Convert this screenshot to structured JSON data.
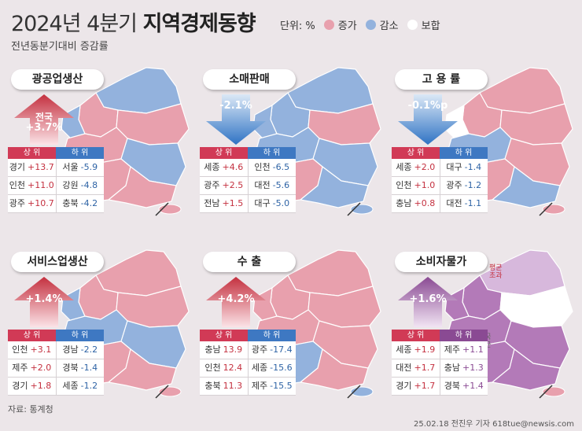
{
  "header": {
    "title_light": "2024년 4분기",
    "title_bold": "지역경제동향",
    "subtitle": "전년동분기대비 증감률"
  },
  "legend": {
    "unit": "단위: %",
    "items": [
      {
        "label": "증가",
        "color": "#e8a0ad"
      },
      {
        "label": "감소",
        "color": "#93b2dd"
      },
      {
        "label": "보합",
        "color": "#ffffff"
      }
    ]
  },
  "colors": {
    "increase": "#e8a0ad",
    "decrease": "#93b2dd",
    "neutral": "#ffffff",
    "purple": "#b37ab8",
    "purple_light": "#d7b8dc"
  },
  "source": "자료: 통계청",
  "credit": "25.02.18 전진우 기자 618tue@newsis.com",
  "chart_data": [
    {
      "type": "table",
      "title": "광공업생산",
      "national_label": "전국",
      "national": "+3.7%",
      "direction": "up",
      "top_label": "상 위",
      "bottom_label": "하 위",
      "top": [
        {
          "region": "경기",
          "value": "+13.7"
        },
        {
          "region": "인천",
          "value": "+11.0"
        },
        {
          "region": "광주",
          "value": "+10.7"
        }
      ],
      "bottom": [
        {
          "region": "서울",
          "value": "-5.9"
        },
        {
          "region": "강원",
          "value": "-4.8"
        },
        {
          "region": "충북",
          "value": "-4.2"
        }
      ]
    },
    {
      "type": "table",
      "title": "소매판매",
      "national": "-2.1%",
      "direction": "down",
      "top_label": "상 위",
      "bottom_label": "하 위",
      "top": [
        {
          "region": "세종",
          "value": "+4.6"
        },
        {
          "region": "광주",
          "value": "+2.5"
        },
        {
          "region": "전남",
          "value": "+1.5"
        }
      ],
      "bottom": [
        {
          "region": "인천",
          "value": "-6.5"
        },
        {
          "region": "대전",
          "value": "-5.6"
        },
        {
          "region": "대구",
          "value": "-5.0"
        }
      ]
    },
    {
      "type": "table",
      "title": "고 용 률",
      "national": "-0.1%p",
      "direction": "down",
      "top_label": "상 위",
      "bottom_label": "하 위",
      "top": [
        {
          "region": "세종",
          "value": "+2.0"
        },
        {
          "region": "인천",
          "value": "+1.0"
        },
        {
          "region": "충남",
          "value": "+0.8"
        }
      ],
      "bottom": [
        {
          "region": "대구",
          "value": "-1.4"
        },
        {
          "region": "광주",
          "value": "-1.2"
        },
        {
          "region": "대전",
          "value": "-1.1"
        }
      ]
    },
    {
      "type": "table",
      "title": "서비스업생산",
      "national": "+1.4%",
      "direction": "up",
      "top_label": "상 위",
      "bottom_label": "하 위",
      "top": [
        {
          "region": "인천",
          "value": "+3.1"
        },
        {
          "region": "제주",
          "value": "+2.0"
        },
        {
          "region": "경기",
          "value": "+1.8"
        }
      ],
      "bottom": [
        {
          "region": "경남",
          "value": "-2.2"
        },
        {
          "region": "경북",
          "value": "-1.4"
        },
        {
          "region": "세종",
          "value": "-1.2"
        }
      ]
    },
    {
      "type": "table",
      "title": "수 출",
      "national": "+4.2%",
      "direction": "up",
      "top_label": "상 위",
      "bottom_label": "하 위",
      "top": [
        {
          "region": "충남",
          "value": "13.9"
        },
        {
          "region": "인천",
          "value": "12.4"
        },
        {
          "region": "충북",
          "value": "11.3"
        }
      ],
      "bottom": [
        {
          "region": "광주",
          "value": "-17.4"
        },
        {
          "region": "세종",
          "value": "-15.6"
        },
        {
          "region": "제주",
          "value": "-15.5"
        }
      ]
    },
    {
      "type": "table",
      "title": "소비자물가",
      "national": "+1.6%",
      "direction": "up",
      "top_label": "상 위",
      "bottom_label": "하 위",
      "top": [
        {
          "region": "세종",
          "value": "+1.9"
        },
        {
          "region": "대전",
          "value": "+1.7"
        },
        {
          "region": "경기",
          "value": "+1.7"
        }
      ],
      "bottom": [
        {
          "region": "제주",
          "value": "+1.1"
        },
        {
          "region": "충남",
          "value": "+1.3"
        },
        {
          "region": "경북",
          "value": "+1.4"
        }
      ],
      "map_labels": [
        {
          "lines": [
            "평균",
            "초과"
          ]
        },
        {
          "lines": [
            "평균",
            "미만"
          ]
        },
        {
          "lines": [
            "전국",
            "평균"
          ]
        }
      ]
    }
  ]
}
